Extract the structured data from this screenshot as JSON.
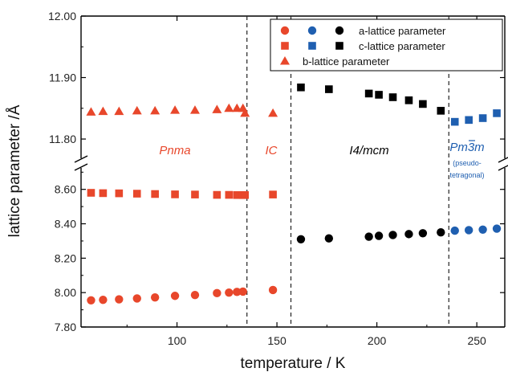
{
  "chart_data": {
    "type": "scatter",
    "xlabel": "temperature / K",
    "ylabel": "lattice parameter /Å",
    "xlim": [
      52,
      264
    ],
    "x_ticks": [
      100,
      150,
      200,
      250
    ],
    "axis_break": true,
    "upper_panel": {
      "ylim": [
        11.77,
        12.0
      ],
      "ticks": [
        "12.00",
        "11.90",
        "11.80"
      ]
    },
    "lower_panel": {
      "ylim": [
        7.8,
        8.72
      ],
      "ticks": [
        "8.60",
        "8.40",
        "8.20",
        "8.00",
        "7.80"
      ]
    },
    "phase_boundaries": [
      135,
      157,
      236
    ],
    "phase_labels": [
      {
        "text": "Pnma",
        "color": "#e8472b",
        "note": ""
      },
      {
        "text": "IC",
        "color": "#e8472b",
        "note": ""
      },
      {
        "text": "I4/mcm",
        "color": "#000000",
        "note": ""
      },
      {
        "text": "Pm3m",
        "color": "#1f5fb0",
        "note_lines": [
          "(pseudo-",
          "tetragonal)"
        ]
      }
    ],
    "legend": {
      "position": "top-right",
      "rows": [
        {
          "label": "a-lattice parameter",
          "marker": "circle",
          "colors": [
            "#e8472b",
            "#1f5fb0",
            "#000000"
          ]
        },
        {
          "label": "c-lattice parameter",
          "marker": "square",
          "colors": [
            "#e8472b",
            "#1f5fb0",
            "#000000"
          ]
        },
        {
          "label": "b-lattice parameter",
          "marker": "triangle",
          "colors": [
            "#e8472b"
          ]
        }
      ]
    },
    "series": [
      {
        "name": "a-lattice parameter",
        "color": "#e8472b",
        "marker": "circle",
        "x": [
          57,
          63,
          71,
          80,
          89,
          99,
          109,
          120,
          126,
          130,
          133,
          148
        ],
        "y": [
          7.955,
          7.958,
          7.961,
          7.966,
          7.972,
          7.981,
          7.986,
          7.997,
          8.0,
          8.004,
          8.006,
          8.015
        ]
      },
      {
        "name": "a-lattice parameter",
        "color": "#000000",
        "marker": "circle",
        "x": [
          162,
          176,
          196,
          201,
          208,
          216,
          223,
          232
        ],
        "y": [
          8.31,
          8.315,
          8.325,
          8.33,
          8.335,
          8.34,
          8.345,
          8.35
        ]
      },
      {
        "name": "a-lattice parameter",
        "color": "#1f5fb0",
        "marker": "circle",
        "x": [
          239,
          246,
          253,
          260
        ],
        "y": [
          8.36,
          8.363,
          8.366,
          8.372
        ]
      },
      {
        "name": "b-lattice parameter",
        "color": "#e8472b",
        "marker": "square",
        "x": [
          57,
          63,
          71,
          80,
          89,
          99,
          109,
          120,
          126,
          130,
          133,
          134,
          148
        ],
        "y": [
          8.58,
          8.578,
          8.577,
          8.575,
          8.573,
          8.571,
          8.57,
          8.568,
          8.568,
          8.567,
          8.567,
          8.567,
          8.57
        ]
      },
      {
        "name": "b-lattice parameter",
        "color": "#e8472b",
        "marker": "triangle",
        "x": [
          57,
          63,
          71,
          80,
          89,
          99,
          109,
          120,
          126,
          130,
          133,
          134,
          148
        ],
        "y": [
          11.844,
          11.845,
          11.845,
          11.846,
          11.846,
          11.847,
          11.847,
          11.848,
          11.85,
          11.85,
          11.85,
          11.842,
          11.842
        ]
      },
      {
        "name": "c-lattice parameter",
        "color": "#000000",
        "marker": "square",
        "x": [
          162,
          176,
          196,
          201,
          208,
          216,
          223,
          232
        ],
        "y": [
          11.884,
          11.881,
          11.874,
          11.872,
          11.868,
          11.863,
          11.857,
          11.846
        ]
      },
      {
        "name": "c-lattice parameter",
        "color": "#1f5fb0",
        "marker": "square",
        "x": [
          239,
          246,
          253,
          260
        ],
        "y": [
          11.828,
          11.831,
          11.834,
          11.842
        ]
      }
    ]
  }
}
